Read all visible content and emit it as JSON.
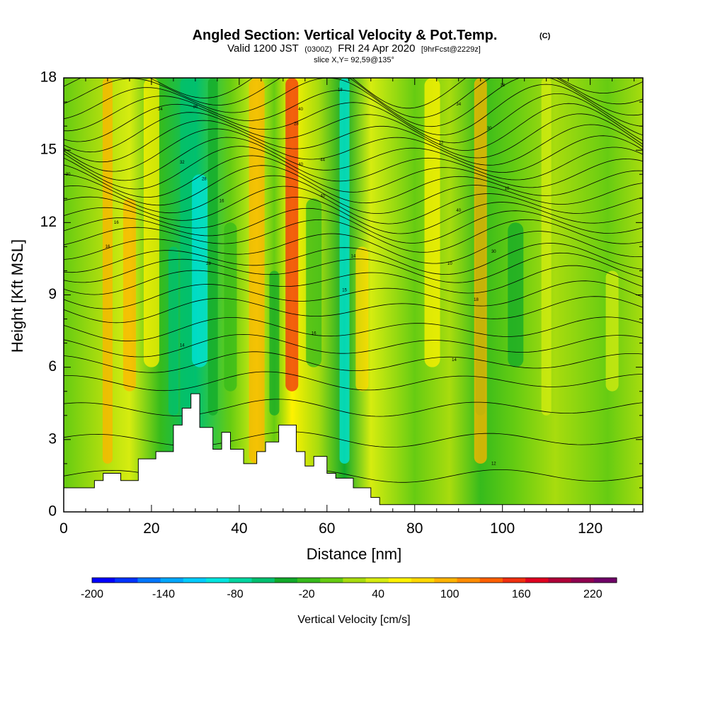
{
  "header": {
    "title": "Angled Section: Vertical Velocity & Pot.Temp.",
    "title_units": "(C)",
    "valid_prefix": "Valid 1200 JST",
    "valid_utc": "(0300Z)",
    "valid_date": "FRI 24 Apr 2020",
    "forecast": "[9hrFcst@2229z]",
    "slice": "slice X,Y= 92,59@135°"
  },
  "chart_data": {
    "type": "heatmap",
    "title": "Angled Section: Vertical Velocity & Pot.Temp.",
    "xlabel": "Distance [nm]",
    "ylabel": "Height [Kft MSL]",
    "xlim": [
      0,
      132
    ],
    "ylim": [
      0,
      18
    ],
    "x_ticks": [
      0,
      20,
      40,
      60,
      80,
      100,
      120
    ],
    "y_ticks": [
      0,
      3,
      6,
      9,
      12,
      15,
      18
    ],
    "x_tick_labels": [
      "0",
      "20",
      "40",
      "60",
      "80",
      "100",
      "120"
    ],
    "y_tick_labels": [
      "0",
      "3",
      "6",
      "9",
      "12",
      "15",
      "18"
    ],
    "grid": false,
    "colorbar": {
      "label": "Vertical Velocity [cm/s]",
      "min": -200,
      "max": 240,
      "step": 20,
      "tick_values": [
        -200,
        -140,
        -80,
        -20,
        40,
        100,
        160,
        220
      ],
      "tick_labels": [
        "-200",
        "-140",
        "-80",
        "-20",
        "40",
        "100",
        "160",
        "220"
      ],
      "colors": [
        "#0000ff",
        "#0033ff",
        "#0077ff",
        "#00a8ff",
        "#00ccff",
        "#00e5e0",
        "#00d6a0",
        "#00c070",
        "#12aa2a",
        "#36bb1c",
        "#66cc12",
        "#a8dc0e",
        "#d6ec10",
        "#fff200",
        "#ffd800",
        "#ffb400",
        "#ff8c00",
        "#ff6000",
        "#f03010",
        "#e00020",
        "#b00038",
        "#900050",
        "#700068"
      ]
    },
    "vertical_velocity_bands": [
      {
        "x": 10,
        "v": 100
      },
      {
        "x": 15,
        "v": 100
      },
      {
        "x": 20,
        "v": 60
      },
      {
        "x": 25,
        "v": -60
      },
      {
        "x": 28,
        "v": -60
      },
      {
        "x": 31,
        "v": -100
      },
      {
        "x": 34,
        "v": -40
      },
      {
        "x": 38,
        "v": -20
      },
      {
        "x": 44,
        "v": 100
      },
      {
        "x": 48,
        "v": -40
      },
      {
        "x": 52,
        "v": 160
      },
      {
        "x": 57,
        "v": -20
      },
      {
        "x": 64,
        "v": -100
      },
      {
        "x": 68,
        "v": 80
      },
      {
        "x": 84,
        "v": 60
      },
      {
        "x": 95,
        "v": -40
      },
      {
        "x": 95,
        "v": 100
      },
      {
        "x": 103,
        "v": -40
      },
      {
        "x": 110,
        "v": 40
      },
      {
        "x": 125,
        "v": 40
      }
    ],
    "terrain_height_kft": [
      {
        "x": 0,
        "h": 1.0
      },
      {
        "x": 5,
        "h": 1.0
      },
      {
        "x": 7,
        "h": 1.3
      },
      {
        "x": 9,
        "h": 1.6
      },
      {
        "x": 13,
        "h": 1.3
      },
      {
        "x": 17,
        "h": 2.2
      },
      {
        "x": 21,
        "h": 2.5
      },
      {
        "x": 25,
        "h": 3.6
      },
      {
        "x": 27,
        "h": 4.3
      },
      {
        "x": 29,
        "h": 4.9
      },
      {
        "x": 31,
        "h": 3.5
      },
      {
        "x": 34,
        "h": 2.6
      },
      {
        "x": 36,
        "h": 3.3
      },
      {
        "x": 38,
        "h": 2.6
      },
      {
        "x": 41,
        "h": 2.0
      },
      {
        "x": 44,
        "h": 2.5
      },
      {
        "x": 46,
        "h": 2.9
      },
      {
        "x": 49,
        "h": 3.6
      },
      {
        "x": 53,
        "h": 2.5
      },
      {
        "x": 55,
        "h": 1.9
      },
      {
        "x": 57,
        "h": 2.3
      },
      {
        "x": 60,
        "h": 1.6
      },
      {
        "x": 62,
        "h": 1.4
      },
      {
        "x": 66,
        "h": 1.0
      },
      {
        "x": 70,
        "h": 0.6
      },
      {
        "x": 72,
        "h": 0.3
      },
      {
        "x": 132,
        "h": 0.3
      }
    ],
    "theta_contours_kft": [
      1.5,
      3.0,
      4.3,
      5.4,
      6.2,
      6.9,
      7.6,
      8.4,
      9.0,
      9.6,
      10.1,
      10.5,
      11.0,
      11.5,
      11.9,
      12.3,
      12.7,
      13.1,
      13.5,
      13.9,
      14.3,
      14.7,
      15.1,
      15.5,
      15.9,
      16.3,
      16.7,
      17.1,
      17.5,
      17.9
    ],
    "contour_labels": [
      {
        "x": 1,
        "y": 14.0,
        "text": "30"
      },
      {
        "x": 12,
        "y": 12.0,
        "text": "16"
      },
      {
        "x": 10,
        "y": 11.0,
        "text": "16"
      },
      {
        "x": 22,
        "y": 16.7,
        "text": "34"
      },
      {
        "x": 30,
        "y": 16.8,
        "text": "36"
      },
      {
        "x": 27,
        "y": 14.5,
        "text": "32"
      },
      {
        "x": 32,
        "y": 13.8,
        "text": "28"
      },
      {
        "x": 36,
        "y": 12.9,
        "text": "16"
      },
      {
        "x": 33,
        "y": 10.3,
        "text": "28"
      },
      {
        "x": 27,
        "y": 6.9,
        "text": "14"
      },
      {
        "x": 54,
        "y": 16.7,
        "text": "40"
      },
      {
        "x": 53,
        "y": 16.1,
        "text": "28"
      },
      {
        "x": 54,
        "y": 14.4,
        "text": "40"
      },
      {
        "x": 59,
        "y": 14.6,
        "text": "44"
      },
      {
        "x": 59,
        "y": 13.1,
        "text": "40"
      },
      {
        "x": 63,
        "y": 17.5,
        "text": "18"
      },
      {
        "x": 66,
        "y": 10.6,
        "text": "14"
      },
      {
        "x": 64,
        "y": 9.2,
        "text": "15"
      },
      {
        "x": 57,
        "y": 7.4,
        "text": "16"
      },
      {
        "x": 90,
        "y": 16.9,
        "text": "34"
      },
      {
        "x": 100,
        "y": 17.7,
        "text": "18"
      },
      {
        "x": 97,
        "y": 15.9,
        "text": "30"
      },
      {
        "x": 86,
        "y": 15.3,
        "text": "12"
      },
      {
        "x": 90,
        "y": 12.5,
        "text": "40"
      },
      {
        "x": 101,
        "y": 13.4,
        "text": "10"
      },
      {
        "x": 98,
        "y": 10.8,
        "text": "30"
      },
      {
        "x": 88,
        "y": 10.3,
        "text": "10"
      },
      {
        "x": 94,
        "y": 8.8,
        "text": "18"
      },
      {
        "x": 89,
        "y": 6.3,
        "text": "14"
      },
      {
        "x": 98,
        "y": 2.0,
        "text": "12"
      }
    ]
  }
}
